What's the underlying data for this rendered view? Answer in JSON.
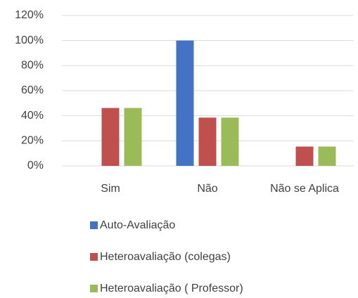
{
  "chart_data": {
    "type": "bar",
    "categories": [
      "Sim",
      "Não",
      "Não se Aplica"
    ],
    "series": [
      {
        "name": "Auto-Avaliação",
        "color": "#4472c4",
        "values": [
          0,
          100,
          0
        ]
      },
      {
        "name": "Heteroavaliação (colegas)",
        "color": "#c0504d",
        "values": [
          46.2,
          38.5,
          15.4
        ]
      },
      {
        "name": "Heteroavaliação ( Professor)",
        "color": "#9bbb59",
        "values": [
          46.2,
          38.5,
          15.4
        ]
      }
    ],
    "ylim": [
      0,
      120
    ],
    "yticks": [
      {
        "value": 0,
        "label": "0%"
      },
      {
        "value": 20,
        "label": "20%"
      },
      {
        "value": 40,
        "label": "40%"
      },
      {
        "value": 60,
        "label": "60%"
      },
      {
        "value": 80,
        "label": "80%"
      },
      {
        "value": 100,
        "label": "100%"
      },
      {
        "value": 120,
        "label": "120%"
      }
    ],
    "grid": true,
    "legend": "bottom"
  }
}
